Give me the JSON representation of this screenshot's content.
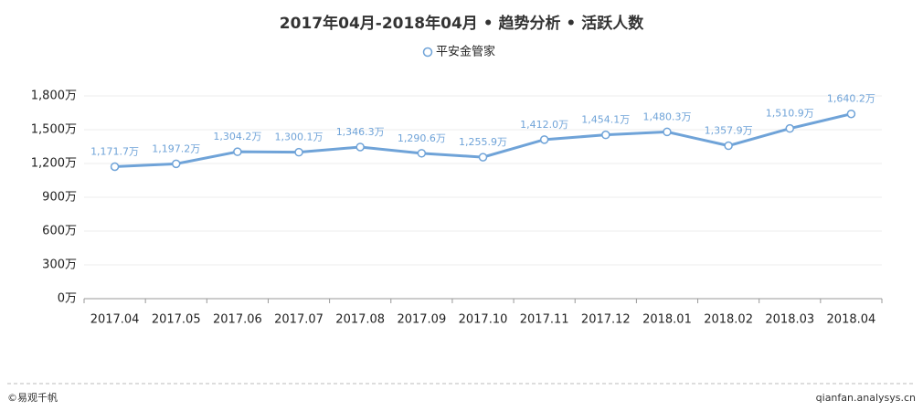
{
  "chart_data": {
    "type": "line",
    "title": "2017年04月-2018年04月 • 趋势分析 • 活跃人数",
    "categories": [
      "2017.04",
      "2017.05",
      "2017.06",
      "2017.07",
      "2017.08",
      "2017.09",
      "2017.10",
      "2017.11",
      "2017.12",
      "2018.01",
      "2018.02",
      "2018.03",
      "2018.04"
    ],
    "series": [
      {
        "name": "平安金管家",
        "color": "#6fa3d8",
        "values": [
          1171.7,
          1197.2,
          1304.2,
          1300.1,
          1346.3,
          1290.6,
          1255.9,
          1412.0,
          1454.1,
          1480.3,
          1357.9,
          1510.9,
          1640.2
        ],
        "value_labels": [
          "1,171.7万",
          "1,197.2万",
          "1,304.2万",
          "1,300.1万",
          "1,346.3万",
          "1,290.6万",
          "1,255.9万",
          "1,412.0万",
          "1,454.1万",
          "1,480.3万",
          "1,357.9万",
          "1,510.9万",
          "1,640.2万"
        ]
      }
    ],
    "ylim": [
      0,
      1800
    ],
    "yticks": [
      {
        "value": 0,
        "label": "0万"
      },
      {
        "value": 300,
        "label": "300万"
      },
      {
        "value": 600,
        "label": "600万"
      },
      {
        "value": 900,
        "label": "900万"
      },
      {
        "value": 1200,
        "label": "1,200万"
      },
      {
        "value": 1500,
        "label": "1,500万"
      },
      {
        "value": 1800,
        "label": "1,800万"
      }
    ],
    "grid": true,
    "legend": "top"
  },
  "footer": {
    "left": "©易观千帆",
    "right": "qianfan.analysys.cn"
  }
}
